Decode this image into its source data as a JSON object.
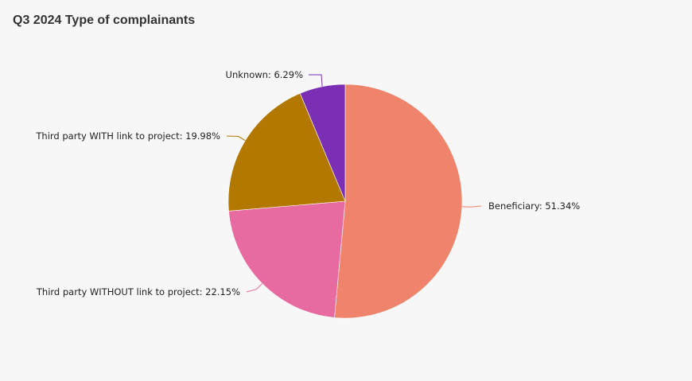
{
  "chart_data": {
    "type": "pie",
    "title": "Q3 2024 Type of complainants",
    "slices": [
      {
        "label": "Beneficiary: 51.34%",
        "name": "Beneficiary",
        "value": 51.34,
        "color": "#f0836b"
      },
      {
        "label": "Third party WITHOUT link to project: 22.15%",
        "name": "Third party WITHOUT link to project",
        "value": 22.15,
        "color": "#e76aa0"
      },
      {
        "label": "Third party WITH link to project: 19.98%",
        "name": "Third party WITH link to project",
        "value": 19.98,
        "color": "#b27800"
      },
      {
        "label": "Unknown: 6.29%",
        "name": "Unknown",
        "value": 6.29,
        "color": "#7b2fb5"
      }
    ],
    "start_angle": "top",
    "direction": "clockwise",
    "legend": "none"
  }
}
